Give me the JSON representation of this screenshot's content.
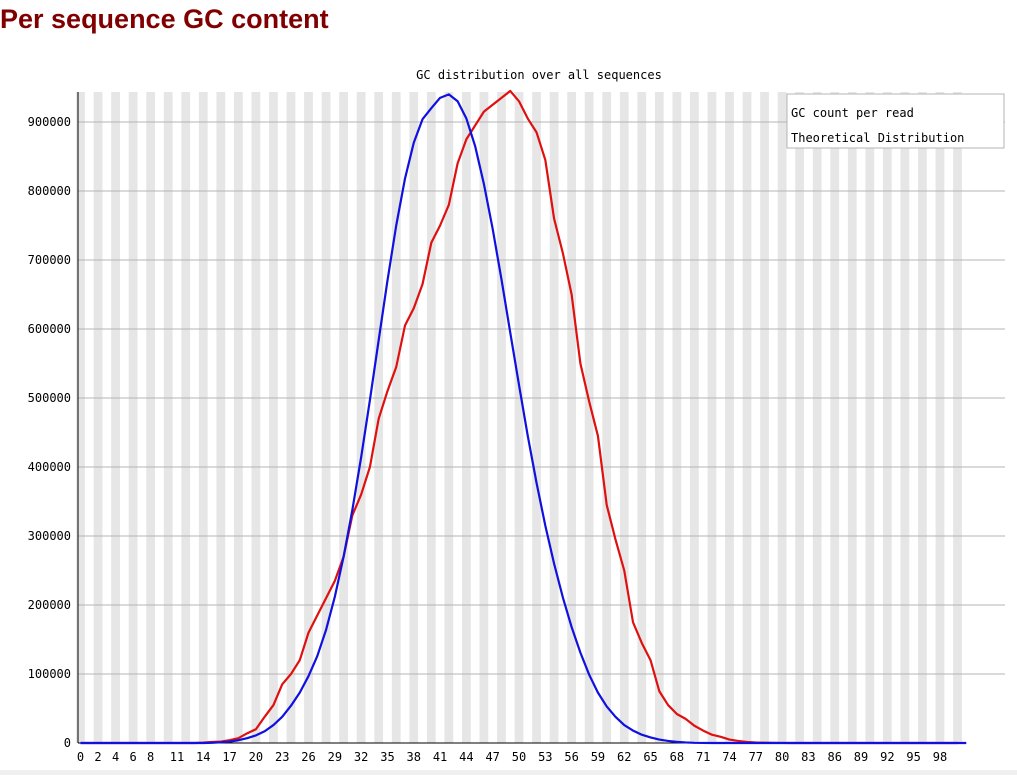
{
  "page": {
    "title": "Per sequence GC content"
  },
  "colors": {
    "title": "#800000",
    "gc_count": "#e01010",
    "theoretical": "#1010e0",
    "stripe": "#e6e6e6",
    "grid": "#b4b4b4"
  },
  "chart_data": {
    "type": "line",
    "title": "GC distribution over all sequences",
    "xlabel": "",
    "ylabel": "",
    "ylim": [
      0,
      940000
    ],
    "yticks": [
      0,
      100000,
      200000,
      300000,
      400000,
      500000,
      600000,
      700000,
      800000,
      900000
    ],
    "xtick_labels": [
      "0",
      "2",
      "4",
      "6",
      "8",
      "11",
      "14",
      "17",
      "20",
      "23",
      "26",
      "29",
      "32",
      "35",
      "38",
      "41",
      "44",
      "47",
      "50",
      "53",
      "56",
      "59",
      "62",
      "65",
      "68",
      "71",
      "74",
      "77",
      "80",
      "83",
      "86",
      "89",
      "92",
      "95",
      "98"
    ],
    "grid": true,
    "legend_position": "top-right",
    "series": [
      {
        "name": "GC count per read",
        "color": "#e01010",
        "values": [
          0,
          0,
          0,
          0,
          0,
          0,
          0,
          0,
          0,
          0,
          0,
          0,
          0,
          0,
          500,
          1500,
          2000,
          4000,
          7000,
          14000,
          20000,
          38000,
          55000,
          85000,
          100000,
          120000,
          160000,
          185000,
          210000,
          235000,
          270000,
          330000,
          360000,
          400000,
          470000,
          510000,
          545000,
          605000,
          630000,
          665000,
          725000,
          750000,
          780000,
          840000,
          875000,
          895000,
          915000,
          925000,
          935000,
          945000,
          930000,
          905000,
          885000,
          845000,
          760000,
          710000,
          650000,
          550000,
          495000,
          445000,
          345000,
          295000,
          250000,
          175000,
          145000,
          120000,
          75000,
          55000,
          42000,
          35000,
          25000,
          18000,
          12000,
          9000,
          5000,
          3000,
          1500,
          800,
          400,
          200,
          100,
          50,
          0,
          0,
          0,
          0,
          0,
          0,
          0,
          0,
          0,
          0,
          0,
          0,
          0,
          0,
          0,
          0,
          0,
          0,
          0
        ]
      },
      {
        "name": "Theoretical Distribution",
        "color": "#1010e0",
        "values": [
          0,
          0,
          0,
          0,
          0,
          0,
          0,
          0,
          0,
          0,
          0,
          0,
          0,
          0,
          0,
          400,
          1000,
          2000,
          4000,
          7000,
          11000,
          17000,
          26000,
          38000,
          54000,
          73000,
          97000,
          126000,
          164000,
          212000,
          270000,
          338000,
          414000,
          497000,
          584000,
          670000,
          750000,
          818000,
          870000,
          904000,
          920000,
          935000,
          940000,
          930000,
          905000,
          865000,
          810000,
          745000,
          672000,
          595000,
          519000,
          445000,
          377000,
          315000,
          260000,
          211000,
          168000,
          131000,
          99000,
          73000,
          53000,
          38000,
          26000,
          18000,
          12000,
          8000,
          5000,
          3000,
          1600,
          800,
          300,
          100,
          0,
          0,
          0,
          0,
          0,
          0,
          0,
          0,
          0,
          0,
          0,
          0,
          0,
          0,
          0,
          0,
          0,
          0,
          0,
          0,
          0,
          0,
          0,
          0,
          0,
          0,
          0,
          0,
          0,
          0
        ]
      }
    ]
  }
}
